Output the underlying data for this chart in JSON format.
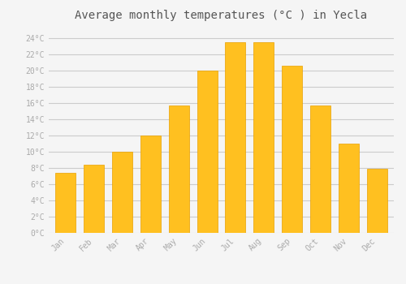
{
  "months": [
    "Jan",
    "Feb",
    "Mar",
    "Apr",
    "May",
    "Jun",
    "Jul",
    "Aug",
    "Sep",
    "Oct",
    "Nov",
    "Dec"
  ],
  "temperatures": [
    7.4,
    8.4,
    10.0,
    12.0,
    15.7,
    20.0,
    23.5,
    23.5,
    20.6,
    15.7,
    11.0,
    7.9
  ],
  "bar_color": "#FFC020",
  "bar_edge_color": "#E8A000",
  "title": "Average monthly temperatures (°C ) in Yecla",
  "title_fontsize": 10,
  "ylabel_values": [
    "0°C",
    "2°C",
    "4°C",
    "6°C",
    "8°C",
    "10°C",
    "12°C",
    "14°C",
    "16°C",
    "18°C",
    "20°C",
    "22°C",
    "24°C"
  ],
  "ytick_values": [
    0,
    2,
    4,
    6,
    8,
    10,
    12,
    14,
    16,
    18,
    20,
    22,
    24
  ],
  "ylim": [
    0,
    25.5
  ],
  "background_color": "#f5f5f5",
  "grid_color": "#cccccc",
  "tick_label_color": "#aaaaaa",
  "title_color": "#555555",
  "bar_width": 0.72,
  "linewidth": 0.5
}
